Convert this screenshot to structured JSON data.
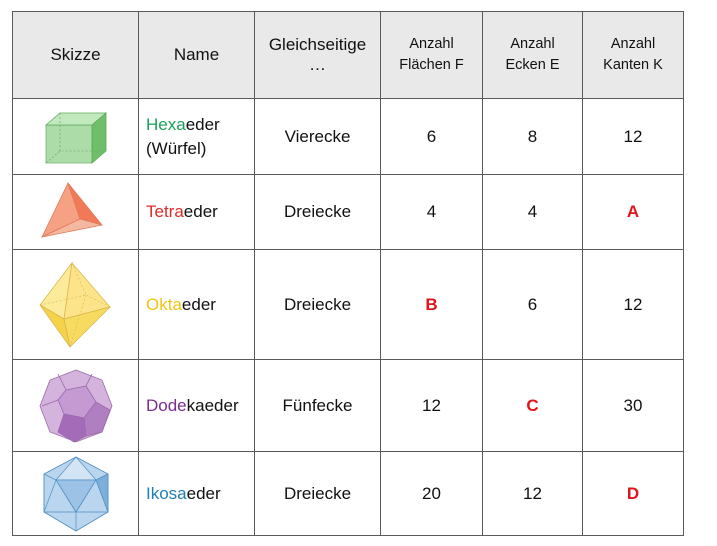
{
  "headers": {
    "sketch": "Skizze",
    "name": "Name",
    "faces_type": [
      "Gleichseitige",
      "…"
    ],
    "faces": [
      "Anzahl",
      "Flächen F"
    ],
    "vertices": [
      "Anzahl",
      "Ecken E"
    ],
    "edges": [
      "Anzahl",
      "Kanten K"
    ]
  },
  "rows": [
    {
      "icon": "cube-icon",
      "name_colored": "Hexa",
      "name_rest": "eder",
      "name_extra": "(Würfel)",
      "color": "#1aa05a",
      "faces_type": "Vierecke",
      "faces": "6",
      "vertices": "8",
      "edges": "12"
    },
    {
      "icon": "tetrahedron-icon",
      "name_colored": "Tetra",
      "name_rest": "eder",
      "color": "#e02a2a",
      "faces_type": "Dreiecke",
      "faces": "4",
      "vertices": "4",
      "edges": "A"
    },
    {
      "icon": "octahedron-icon",
      "name_colored": "Okta",
      "name_rest": "eder",
      "color": "#f1c40f",
      "faces_type": "Dreiecke",
      "faces": "B",
      "vertices": "6",
      "edges": "12"
    },
    {
      "icon": "dodecahedron-icon",
      "name_colored": "Dode",
      "name_rest": "kaeder",
      "color": "#7b2e8f",
      "faces_type": "Fünfecke",
      "faces": "12",
      "vertices": "C",
      "edges": "30"
    },
    {
      "icon": "icosahedron-icon",
      "name_colored": "Ikosa",
      "name_rest": "eder",
      "color": "#1f7fb0",
      "faces_type": "Dreiecke",
      "faces": "20",
      "vertices": "12",
      "edges": "D"
    }
  ]
}
